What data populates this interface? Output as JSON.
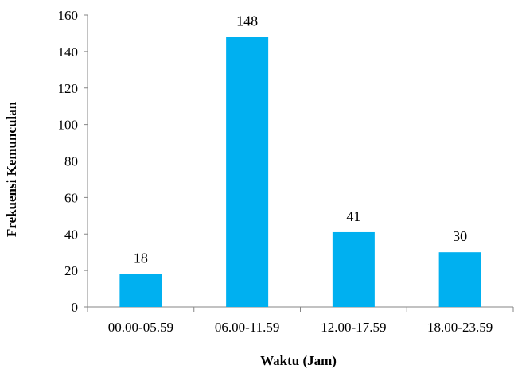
{
  "chart_data": {
    "type": "bar",
    "title": "",
    "xlabel": "Waktu (Jam)",
    "ylabel": "Frekuensi Kemunculan",
    "categories": [
      "00.00-05.59",
      "06.00-11.59",
      "12.00-17.59",
      "18.00-23.59"
    ],
    "values": [
      18,
      148,
      41,
      30
    ],
    "data_labels": [
      "18",
      "148",
      "41",
      "30"
    ],
    "ylim": [
      0,
      160
    ],
    "yticks": [
      0,
      20,
      40,
      60,
      80,
      100,
      120,
      140,
      160
    ],
    "grid": false,
    "legend": "none",
    "bar_color": "#00B0F0",
    "axis_color": "#868686"
  }
}
